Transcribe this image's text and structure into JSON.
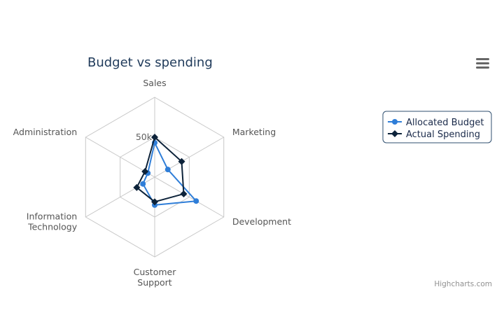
{
  "chart_data": {
    "type": "radar",
    "title": "Budget vs spending",
    "categories": [
      "Sales",
      "Marketing",
      "Development",
      "Customer Support",
      "Information Technology",
      "Administration"
    ],
    "category_lines": [
      [
        "Sales"
      ],
      [
        "Marketing"
      ],
      [
        "Development"
      ],
      [
        "Customer",
        "Support"
      ],
      [
        "Information",
        "Technology"
      ],
      [
        "Administration"
      ]
    ],
    "radial_max": 100000,
    "radial_ticks": [
      {
        "value": 50000,
        "label": "50k"
      }
    ],
    "grid_levels": [
      50000,
      100000
    ],
    "legend_position": "right",
    "series": [
      {
        "name": "Allocated Budget",
        "color": "#2f7ed8",
        "marker": "circle",
        "values": [
          43000,
          19000,
          60000,
          35000,
          17000,
          10000
        ]
      },
      {
        "name": "Actual Spending",
        "color": "#0d233a",
        "marker": "diamond",
        "values": [
          50000,
          39000,
          42000,
          31000,
          26000,
          14000
        ]
      }
    ]
  },
  "credits": "Highcharts.com",
  "menu_icon": "hamburger-menu-icon"
}
